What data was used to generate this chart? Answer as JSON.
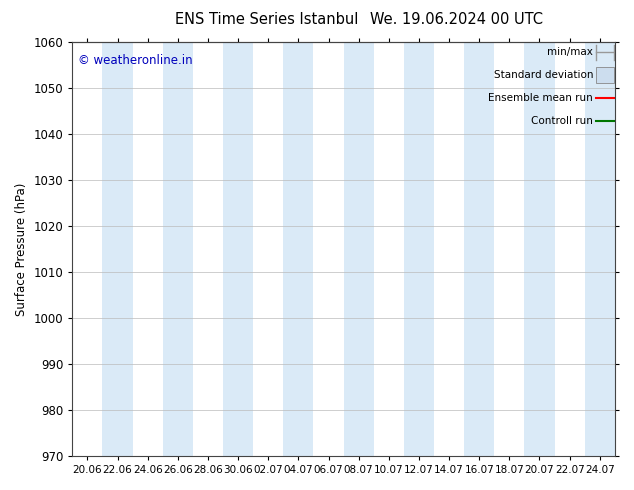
{
  "title_left": "ENS Time Series Istanbul",
  "title_right": "We. 19.06.2024 00 UTC",
  "ylabel": "Surface Pressure (hPa)",
  "ylim": [
    970,
    1060
  ],
  "yticks": [
    970,
    980,
    990,
    1000,
    1010,
    1020,
    1030,
    1040,
    1050,
    1060
  ],
  "x_tick_labels": [
    "20.06",
    "22.06",
    "24.06",
    "26.06",
    "28.06",
    "30.06",
    "02.07",
    "04.07",
    "06.07",
    "08.07",
    "10.07",
    "12.07",
    "14.07",
    "16.07",
    "18.07",
    "20.07",
    "22.07",
    "24.07"
  ],
  "n_ticks": 18,
  "shaded_band_color": "#daeaf7",
  "shaded_bands_indices": [
    1,
    3,
    5,
    7,
    9,
    11,
    13,
    15,
    17
  ],
  "watermark": "© weatheronline.in",
  "watermark_color": "#0000bb",
  "legend_items": [
    {
      "label": "min/max",
      "color": "#999999",
      "type": "line_with_caps"
    },
    {
      "label": "Standard deviation",
      "color": "#ccddee",
      "type": "rect"
    },
    {
      "label": "Ensemble mean run",
      "color": "#ff0000",
      "type": "line"
    },
    {
      "label": "Controll run",
      "color": "#007700",
      "type": "line"
    }
  ],
  "bg_color": "#ffffff",
  "grid_color": "#bbbbbb",
  "tick_color": "#444444",
  "font_size": 8.5,
  "title_font_size": 10.5,
  "legend_font_size": 7.5
}
